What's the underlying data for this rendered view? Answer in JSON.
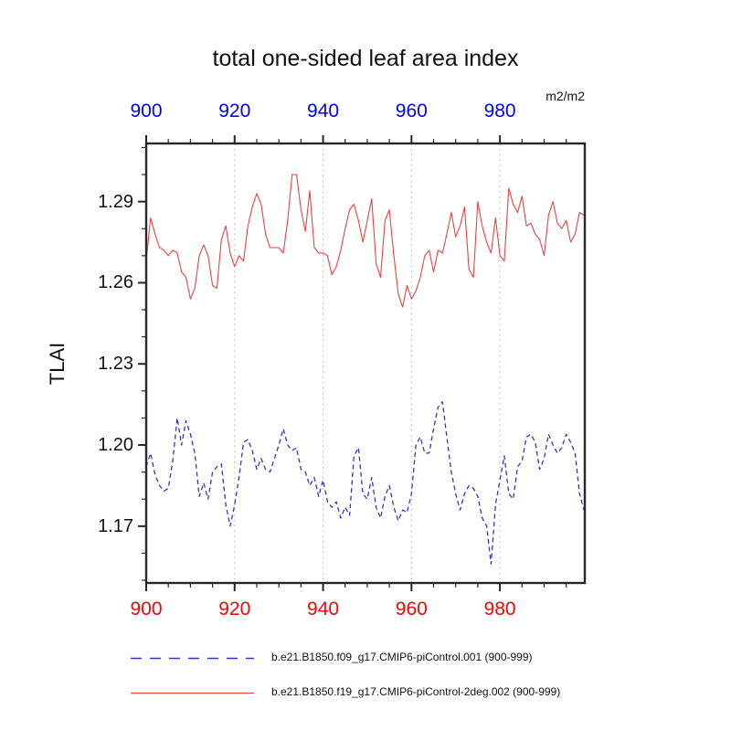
{
  "figure": {
    "title": "total one-sided leaf area index",
    "units_label": "m2/m2",
    "y_axis_label": "TLAI"
  },
  "chart_data": {
    "type": "line",
    "title": "total one-sided leaf area index",
    "ylabel": "TLAI",
    "units": "m2/m2",
    "x_start": 900,
    "x_step": 1,
    "xlim": [
      900,
      999.2
    ],
    "ylim": [
      1.149,
      1.3115
    ],
    "xticks_major": [
      900,
      920,
      940,
      960,
      980
    ],
    "xtick_minor_interval": 5,
    "yticks_major": [
      1.17,
      1.2,
      1.23,
      1.26,
      1.29
    ],
    "ytick_minor_interval": 0.01,
    "ytick_minor_range": [
      1.15,
      1.31
    ],
    "grid_vertical_dotted_at": [
      920,
      940,
      960,
      980
    ],
    "grid_color": "#bfbfbf",
    "axis_color": "#262626",
    "axis_label_colors": {
      "top": "#0000ff",
      "bottom": "#ff0000",
      "left": "#000000"
    },
    "legend_position": "bottom",
    "series": [
      {
        "name": "b.e21.B1850.f09_g17.CMIP6-piControl.001 (900-999)",
        "color": "#3333cc",
        "style": "dashed",
        "values": [
          1.192,
          1.197,
          1.189,
          1.185,
          1.183,
          1.184,
          1.194,
          1.21,
          1.2,
          1.209,
          1.204,
          1.197,
          1.181,
          1.186,
          1.18,
          1.19,
          1.192,
          1.193,
          1.178,
          1.17,
          1.178,
          1.188,
          1.201,
          1.202,
          1.198,
          1.191,
          1.195,
          1.191,
          1.19,
          1.195,
          1.2,
          1.206,
          1.2,
          1.198,
          1.199,
          1.191,
          1.19,
          1.185,
          1.188,
          1.181,
          1.187,
          1.179,
          1.177,
          1.179,
          1.173,
          1.177,
          1.174,
          1.196,
          1.199,
          1.182,
          1.18,
          1.188,
          1.177,
          1.173,
          1.181,
          1.185,
          1.177,
          1.172,
          1.176,
          1.175,
          1.182,
          1.2,
          1.203,
          1.197,
          1.197,
          1.206,
          1.214,
          1.216,
          1.203,
          1.19,
          1.182,
          1.176,
          1.182,
          1.185,
          1.184,
          1.181,
          1.173,
          1.17,
          1.156,
          1.178,
          1.187,
          1.196,
          1.182,
          1.18,
          1.192,
          1.194,
          1.203,
          1.204,
          1.201,
          1.191,
          1.195,
          1.204,
          1.2,
          1.197,
          1.199,
          1.204,
          1.201,
          1.197,
          1.182,
          1.176
        ]
      },
      {
        "name": "b.e21.B1850.f19_g17.CMIP6-piControl-2deg.002 (900-999)",
        "color": "#ee4040",
        "style": "solid",
        "values": [
          1.268,
          1.284,
          1.278,
          1.273,
          1.272,
          1.27,
          1.272,
          1.271,
          1.264,
          1.262,
          1.254,
          1.258,
          1.27,
          1.274,
          1.27,
          1.259,
          1.258,
          1.276,
          1.281,
          1.271,
          1.266,
          1.27,
          1.268,
          1.281,
          1.288,
          1.293,
          1.289,
          1.278,
          1.273,
          1.273,
          1.273,
          1.271,
          1.283,
          1.3,
          1.3,
          1.287,
          1.279,
          1.294,
          1.273,
          1.271,
          1.271,
          1.27,
          1.263,
          1.266,
          1.272,
          1.28,
          1.287,
          1.289,
          1.283,
          1.275,
          1.283,
          1.291,
          1.267,
          1.262,
          1.283,
          1.287,
          1.27,
          1.256,
          1.251,
          1.259,
          1.254,
          1.257,
          1.262,
          1.27,
          1.272,
          1.264,
          1.272,
          1.271,
          1.278,
          1.286,
          1.277,
          1.281,
          1.288,
          1.265,
          1.262,
          1.29,
          1.281,
          1.275,
          1.271,
          1.284,
          1.27,
          1.268,
          1.295,
          1.289,
          1.286,
          1.292,
          1.281,
          1.282,
          1.278,
          1.276,
          1.27,
          1.285,
          1.29,
          1.282,
          1.28,
          1.283,
          1.275,
          1.278,
          1.286,
          1.285
        ]
      }
    ]
  }
}
